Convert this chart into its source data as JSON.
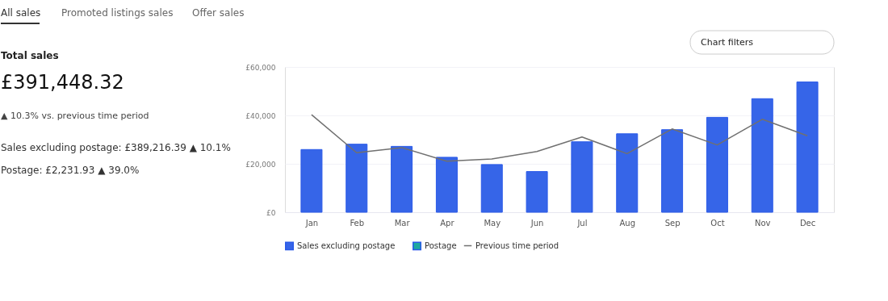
{
  "chart_data": {
    "type": "bar",
    "title": "Total sales",
    "subtitle": "£391,448.32",
    "annotations": [
      "All sales",
      "Promoted listings sales",
      "Offer sales",
      "▲ 10.3% vs. previous time period",
      "Sales excluding postage: £389,216.39 ▲ 10.1%",
      "Postage: £2,231.93 ▲ 39.0%",
      "Chart filters"
    ],
    "categories": [
      "Jan",
      "Feb",
      "Mar",
      "Apr",
      "May",
      "Jun",
      "Jul",
      "Aug",
      "Sep",
      "Oct",
      "Nov",
      "Dec"
    ],
    "series": [
      {
        "name": "Sales excluding postage",
        "color": "#3665e8",
        "values": [
          25900,
          28100,
          27200,
          22700,
          19700,
          16800,
          29100,
          32400,
          34100,
          39200,
          46900,
          53800
        ]
      },
      {
        "name": "Postage",
        "color": "#1fa8a0",
        "values": [
          null,
          null,
          null,
          null,
          null,
          null,
          null,
          null,
          null,
          null,
          null,
          null
        ]
      },
      {
        "name": "Previous time period",
        "type": "line",
        "color": "#707070",
        "values": [
          40300,
          24600,
          26700,
          21100,
          22000,
          25100,
          31100,
          24200,
          34400,
          27800,
          38400,
          31600
        ]
      }
    ],
    "ylim": [
      0,
      60000
    ],
    "yticks": [
      {
        "value": 0,
        "label": "£0"
      },
      {
        "value": 20000,
        "label": "£20,000"
      },
      {
        "value": 40000,
        "label": "£40,000"
      },
      {
        "value": 60000,
        "label": "£60,000"
      }
    ],
    "grid": "y",
    "legend": "bottom left"
  }
}
